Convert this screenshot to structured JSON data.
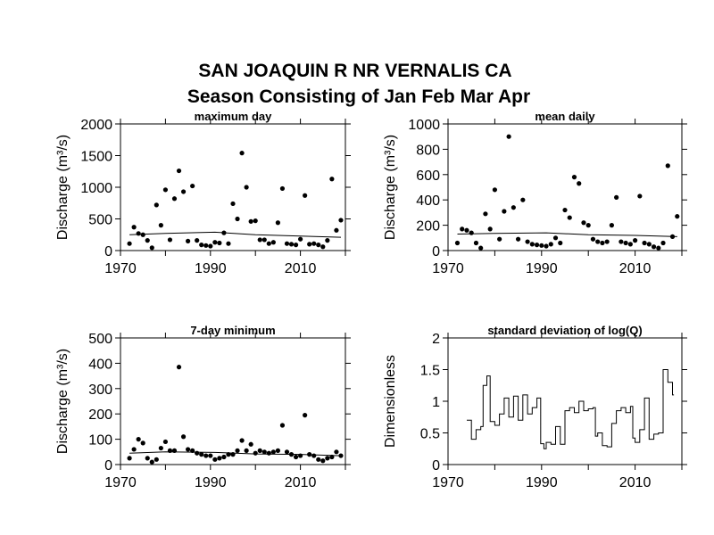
{
  "title_line1": "SAN JOAQUIN R NR VERNALIS CA",
  "title_line2": "Season Consisting of Jan Feb Mar Apr",
  "chart_data": [
    {
      "type": "scatter",
      "title": "maximum day",
      "ylabel": "Discharge (m³/s)",
      "ylim": [
        0,
        2000
      ],
      "yticks": [
        "0",
        "500",
        "1000",
        "1500",
        "2000"
      ],
      "xlim": [
        1970,
        2020
      ],
      "xticks": [
        "1970",
        "1990",
        "2010"
      ],
      "points": [
        [
          1972,
          110
        ],
        [
          1973,
          370
        ],
        [
          1974,
          270
        ],
        [
          1975,
          250
        ],
        [
          1976,
          160
        ],
        [
          1977,
          45
        ],
        [
          1978,
          720
        ],
        [
          1979,
          400
        ],
        [
          1980,
          960
        ],
        [
          1981,
          170
        ],
        [
          1982,
          820
        ],
        [
          1983,
          1260
        ],
        [
          1984,
          930
        ],
        [
          1985,
          150
        ],
        [
          1986,
          1020
        ],
        [
          1987,
          160
        ],
        [
          1988,
          90
        ],
        [
          1989,
          80
        ],
        [
          1990,
          70
        ],
        [
          1991,
          130
        ],
        [
          1992,
          120
        ],
        [
          1993,
          280
        ],
        [
          1994,
          110
        ],
        [
          1995,
          740
        ],
        [
          1996,
          500
        ],
        [
          1997,
          1540
        ],
        [
          1998,
          1000
        ],
        [
          1999,
          460
        ],
        [
          2000,
          470
        ],
        [
          2001,
          170
        ],
        [
          2002,
          170
        ],
        [
          2003,
          110
        ],
        [
          2004,
          130
        ],
        [
          2005,
          440
        ],
        [
          2006,
          980
        ],
        [
          2007,
          110
        ],
        [
          2008,
          100
        ],
        [
          2009,
          90
        ],
        [
          2010,
          180
        ],
        [
          2011,
          870
        ],
        [
          2012,
          100
        ],
        [
          2013,
          110
        ],
        [
          2014,
          90
        ],
        [
          2015,
          60
        ],
        [
          2016,
          160
        ],
        [
          2017,
          1130
        ],
        [
          2018,
          320
        ],
        [
          2019,
          480
        ]
      ],
      "trend": [
        [
          1972,
          250
        ],
        [
          1980,
          270
        ],
        [
          1991,
          290
        ],
        [
          2000,
          250
        ],
        [
          2010,
          230
        ],
        [
          2019,
          210
        ]
      ]
    },
    {
      "type": "scatter",
      "title": "mean daily",
      "ylabel": "Discharge (m³/s)",
      "ylim": [
        0,
        1000
      ],
      "yticks": [
        "0",
        "200",
        "400",
        "600",
        "800",
        "1000"
      ],
      "xlim": [
        1970,
        2020
      ],
      "xticks": [
        "1970",
        "1990",
        "2010"
      ],
      "points": [
        [
          1972,
          60
        ],
        [
          1973,
          170
        ],
        [
          1974,
          160
        ],
        [
          1975,
          140
        ],
        [
          1976,
          60
        ],
        [
          1977,
          20
        ],
        [
          1978,
          290
        ],
        [
          1979,
          170
        ],
        [
          1980,
          480
        ],
        [
          1981,
          90
        ],
        [
          1982,
          310
        ],
        [
          1983,
          900
        ],
        [
          1984,
          340
        ],
        [
          1985,
          90
        ],
        [
          1986,
          400
        ],
        [
          1987,
          70
        ],
        [
          1988,
          50
        ],
        [
          1989,
          45
        ],
        [
          1990,
          40
        ],
        [
          1991,
          35
        ],
        [
          1992,
          50
        ],
        [
          1993,
          100
        ],
        [
          1994,
          60
        ],
        [
          1995,
          320
        ],
        [
          1996,
          260
        ],
        [
          1997,
          580
        ],
        [
          1998,
          530
        ],
        [
          1999,
          220
        ],
        [
          2000,
          200
        ],
        [
          2001,
          90
        ],
        [
          2002,
          70
        ],
        [
          2003,
          60
        ],
        [
          2004,
          70
        ],
        [
          2005,
          200
        ],
        [
          2006,
          420
        ],
        [
          2007,
          70
        ],
        [
          2008,
          60
        ],
        [
          2009,
          50
        ],
        [
          2010,
          80
        ],
        [
          2011,
          430
        ],
        [
          2012,
          60
        ],
        [
          2013,
          50
        ],
        [
          2014,
          30
        ],
        [
          2015,
          20
        ],
        [
          2016,
          60
        ],
        [
          2017,
          670
        ],
        [
          2018,
          110
        ],
        [
          2019,
          270
        ]
      ],
      "trend": [
        [
          1972,
          130
        ],
        [
          1980,
          135
        ],
        [
          1991,
          140
        ],
        [
          2000,
          125
        ],
        [
          2010,
          120
        ],
        [
          2019,
          110
        ]
      ]
    },
    {
      "type": "scatter",
      "title": "7-day minimum",
      "ylabel": "Discharge (m³/s)",
      "ylim": [
        0,
        500
      ],
      "yticks": [
        "0",
        "100",
        "200",
        "300",
        "400",
        "500"
      ],
      "xlim": [
        1970,
        2020
      ],
      "xticks": [
        "1970",
        "1990",
        "2010"
      ],
      "points": [
        [
          1972,
          25
        ],
        [
          1973,
          60
        ],
        [
          1974,
          100
        ],
        [
          1975,
          85
        ],
        [
          1976,
          25
        ],
        [
          1977,
          10
        ],
        [
          1978,
          20
        ],
        [
          1979,
          65
        ],
        [
          1980,
          90
        ],
        [
          1981,
          55
        ],
        [
          1982,
          55
        ],
        [
          1983,
          385
        ],
        [
          1984,
          110
        ],
        [
          1985,
          60
        ],
        [
          1986,
          55
        ],
        [
          1987,
          45
        ],
        [
          1988,
          40
        ],
        [
          1989,
          35
        ],
        [
          1990,
          35
        ],
        [
          1991,
          20
        ],
        [
          1992,
          25
        ],
        [
          1993,
          30
        ],
        [
          1994,
          40
        ],
        [
          1995,
          40
        ],
        [
          1996,
          55
        ],
        [
          1997,
          95
        ],
        [
          1998,
          55
        ],
        [
          1999,
          80
        ],
        [
          2000,
          45
        ],
        [
          2001,
          55
        ],
        [
          2002,
          50
        ],
        [
          2003,
          45
        ],
        [
          2004,
          50
        ],
        [
          2005,
          55
        ],
        [
          2006,
          155
        ],
        [
          2007,
          50
        ],
        [
          2008,
          40
        ],
        [
          2009,
          30
        ],
        [
          2010,
          35
        ],
        [
          2011,
          195
        ],
        [
          2012,
          40
        ],
        [
          2013,
          35
        ],
        [
          2014,
          20
        ],
        [
          2015,
          15
        ],
        [
          2016,
          25
        ],
        [
          2017,
          30
        ],
        [
          2018,
          50
        ],
        [
          2019,
          35
        ]
      ],
      "trend": [
        [
          1972,
          45
        ],
        [
          1980,
          50
        ],
        [
          1991,
          48
        ],
        [
          2000,
          42
        ],
        [
          2010,
          40
        ],
        [
          2019,
          35
        ]
      ]
    },
    {
      "type": "line",
      "title": "standard deviation of log(Q)",
      "ylabel": "Dimensionless",
      "ylim": [
        0,
        2
      ],
      "yticks": [
        "0",
        "0.5",
        "1",
        "1.5",
        "2"
      ],
      "xlim": [
        1970,
        2020
      ],
      "xticks": [
        "1970",
        "1990",
        "2010"
      ],
      "step": [
        [
          1974,
          0.7
        ],
        [
          1975,
          0.4
        ],
        [
          1976,
          0.55
        ],
        [
          1977,
          0.6
        ],
        [
          1977.5,
          1.25
        ],
        [
          1978.3,
          1.4
        ],
        [
          1979,
          0.68
        ],
        [
          1980,
          0.62
        ],
        [
          1981,
          0.8
        ],
        [
          1982,
          1.05
        ],
        [
          1983,
          0.75
        ],
        [
          1984,
          1.08
        ],
        [
          1985,
          0.7
        ],
        [
          1986,
          1.1
        ],
        [
          1987,
          0.8
        ],
        [
          1988,
          0.9
        ],
        [
          1989,
          1.05
        ],
        [
          1989.8,
          0.33
        ],
        [
          1990.5,
          0.25
        ],
        [
          1991,
          0.35
        ],
        [
          1992,
          0.32
        ],
        [
          1993,
          0.6
        ],
        [
          1994,
          0.32
        ],
        [
          1995,
          0.85
        ],
        [
          1996,
          0.9
        ],
        [
          1997,
          0.82
        ],
        [
          1998,
          1.0
        ],
        [
          1999,
          0.85
        ],
        [
          2000,
          0.88
        ],
        [
          2001,
          0.9
        ],
        [
          2001.5,
          0.45
        ],
        [
          2002,
          0.5
        ],
        [
          2003,
          0.3
        ],
        [
          2004,
          0.28
        ],
        [
          2005,
          0.65
        ],
        [
          2006,
          0.85
        ],
        [
          2007,
          0.9
        ],
        [
          2008,
          0.82
        ],
        [
          2009,
          0.92
        ],
        [
          2009.5,
          0.42
        ],
        [
          2010,
          0.35
        ],
        [
          2011,
          0.55
        ],
        [
          2012,
          1.05
        ],
        [
          2013,
          0.4
        ],
        [
          2014,
          0.48
        ],
        [
          2015,
          0.5
        ],
        [
          2016,
          1.5
        ],
        [
          2017,
          1.3
        ],
        [
          2018,
          1.1
        ]
      ]
    }
  ]
}
